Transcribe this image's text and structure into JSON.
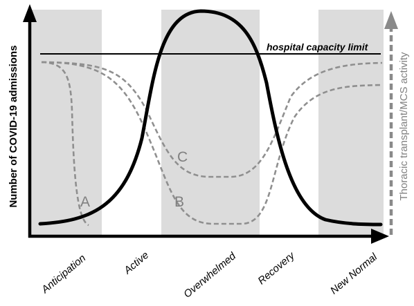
{
  "diagram": {
    "capacity_label": "hospital capacity limit",
    "y_axis_left_label": "Number of COVID-19 admissions",
    "y_axis_right_label": "Thoracic transplant/MCS activity",
    "phases": [
      "Anticipation",
      "Active",
      "Overwhelmed",
      "Recovery",
      "New Normal"
    ],
    "curve_labels": [
      "A",
      "B",
      "C"
    ],
    "colors": {
      "shaded_band": "#dcdcdc",
      "admissions_curve": "#000000",
      "activity_curves": "#8f8f8f",
      "right_axis": "#8a8a8a"
    }
  }
}
